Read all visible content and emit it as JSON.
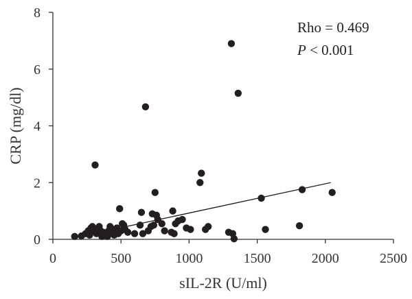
{
  "chart_data": {
    "type": "scatter",
    "title": "",
    "xlabel": "sIL-2R (U/ml)",
    "ylabel": "CRP (mg/dl)",
    "xlim": [
      0,
      2500
    ],
    "ylim": [
      0,
      8
    ],
    "xticks": [
      "0",
      "500",
      "1000",
      "1500",
      "2000",
      "2500"
    ],
    "yticks": [
      "0",
      "2",
      "4",
      "6",
      "8"
    ],
    "grid": false,
    "annotations": {
      "rho": "Rho = 0.469",
      "p_symbol": "P",
      "p_rest": " < 0.001"
    },
    "regression_line": {
      "x": [
        150,
        2040
      ],
      "y": [
        0.05,
        2.0
      ]
    },
    "points": [
      [
        160,
        0.1
      ],
      [
        210,
        0.12
      ],
      [
        240,
        0.2
      ],
      [
        260,
        0.3
      ],
      [
        270,
        0.15
      ],
      [
        280,
        0.4
      ],
      [
        290,
        0.45
      ],
      [
        300,
        0.3
      ],
      [
        310,
        2.62
      ],
      [
        320,
        0.2
      ],
      [
        330,
        0.35
      ],
      [
        340,
        0.45
      ],
      [
        350,
        0.3
      ],
      [
        360,
        0.1
      ],
      [
        370,
        0.25
      ],
      [
        380,
        0.15
      ],
      [
        400,
        0.1
      ],
      [
        410,
        0.3
      ],
      [
        420,
        0.45
      ],
      [
        430,
        0.2
      ],
      [
        440,
        0.35
      ],
      [
        450,
        0.15
      ],
      [
        460,
        0.25
      ],
      [
        470,
        0.4
      ],
      [
        480,
        0.2
      ],
      [
        490,
        1.08
      ],
      [
        500,
        0.3
      ],
      [
        510,
        0.55
      ],
      [
        520,
        0.5
      ],
      [
        530,
        0.35
      ],
      [
        550,
        0.25
      ],
      [
        600,
        0.2
      ],
      [
        640,
        0.5
      ],
      [
        650,
        0.95
      ],
      [
        660,
        0.2
      ],
      [
        680,
        4.67
      ],
      [
        700,
        0.3
      ],
      [
        720,
        0.45
      ],
      [
        730,
        0.9
      ],
      [
        740,
        0.5
      ],
      [
        750,
        1.65
      ],
      [
        760,
        0.85
      ],
      [
        770,
        0.7
      ],
      [
        800,
        0.55
      ],
      [
        820,
        0.3
      ],
      [
        870,
        0.25
      ],
      [
        880,
        1.0
      ],
      [
        890,
        0.2
      ],
      [
        900,
        0.55
      ],
      [
        920,
        0.65
      ],
      [
        950,
        0.7
      ],
      [
        980,
        0.4
      ],
      [
        1010,
        0.35
      ],
      [
        1080,
        2.0
      ],
      [
        1090,
        2.33
      ],
      [
        1120,
        0.35
      ],
      [
        1140,
        0.45
      ],
      [
        1290,
        0.25
      ],
      [
        1310,
        6.9
      ],
      [
        1320,
        0.2
      ],
      [
        1330,
        0.02
      ],
      [
        1360,
        5.15
      ],
      [
        1530,
        1.45
      ],
      [
        1560,
        0.35
      ],
      [
        1810,
        0.48
      ],
      [
        1830,
        1.75
      ],
      [
        2050,
        1.65
      ]
    ]
  }
}
